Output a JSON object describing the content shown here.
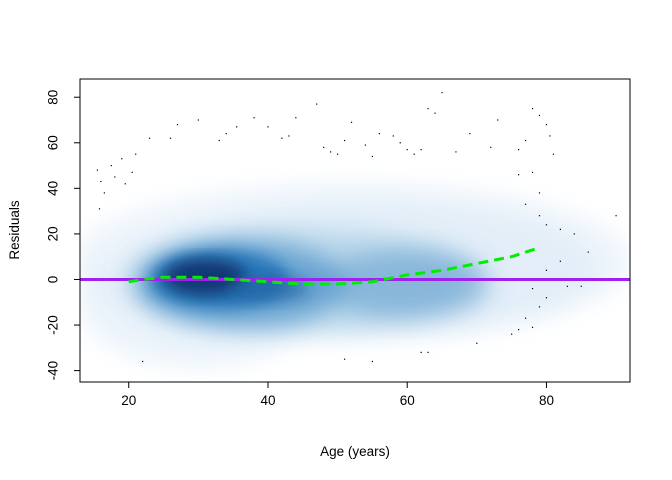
{
  "chart_data": {
    "type": "smoothscatter",
    "xlabel": "Age (years)",
    "ylabel": "Residuals",
    "xlim": [
      13,
      92
    ],
    "ylim": [
      -45,
      88
    ],
    "x_ticks": [
      20,
      40,
      60,
      80
    ],
    "y_ticks": [
      -40,
      -20,
      0,
      20,
      40,
      60,
      80
    ],
    "grid": false,
    "colors": {
      "density_dark": "#08306b",
      "density_mid": "#4a8fc8",
      "density_light": "#deebf7",
      "reference_line": "#a020f0",
      "smooth_line": "#00ee00",
      "points": "#000000"
    },
    "reference_line": {
      "y": 0
    },
    "smooth_curve": {
      "x": [
        20,
        22,
        25,
        30,
        35,
        40,
        45,
        50,
        55,
        60,
        65,
        70,
        75,
        79
      ],
      "y": [
        -1,
        0,
        1,
        1,
        0,
        -1,
        -2,
        -2,
        -1,
        2,
        4,
        7,
        10,
        14
      ]
    },
    "outlier_points": [
      [
        15.5,
        48
      ],
      [
        16,
        43
      ],
      [
        16.5,
        38
      ],
      [
        15.8,
        31
      ],
      [
        17.5,
        50
      ],
      [
        18,
        45
      ],
      [
        19,
        53
      ],
      [
        20.5,
        47
      ],
      [
        19.5,
        42
      ],
      [
        21,
        55
      ],
      [
        23,
        62
      ],
      [
        26,
        62
      ],
      [
        27,
        68
      ],
      [
        30,
        70
      ],
      [
        33,
        61
      ],
      [
        34,
        64
      ],
      [
        35.5,
        67
      ],
      [
        38,
        71
      ],
      [
        40,
        67
      ],
      [
        42,
        62
      ],
      [
        43,
        63
      ],
      [
        44,
        71
      ],
      [
        47,
        77
      ],
      [
        48,
        58
      ],
      [
        49,
        56
      ],
      [
        50,
        55
      ],
      [
        51,
        61
      ],
      [
        52,
        69
      ],
      [
        54,
        59
      ],
      [
        55,
        54
      ],
      [
        56,
        64
      ],
      [
        58,
        63
      ],
      [
        59,
        60
      ],
      [
        60,
        57
      ],
      [
        61,
        55
      ],
      [
        62,
        57
      ],
      [
        63,
        75
      ],
      [
        64,
        73
      ],
      [
        65,
        82
      ],
      [
        67,
        56
      ],
      [
        69,
        64
      ],
      [
        72,
        58
      ],
      [
        73,
        70
      ],
      [
        76,
        57
      ],
      [
        77,
        61
      ],
      [
        78,
        75
      ],
      [
        79,
        72
      ],
      [
        80,
        68
      ],
      [
        80.5,
        63
      ],
      [
        81,
        55
      ],
      [
        76,
        46
      ],
      [
        78,
        47
      ],
      [
        79,
        38
      ],
      [
        77,
        33
      ],
      [
        79,
        28
      ],
      [
        80,
        24
      ],
      [
        82,
        22
      ],
      [
        84,
        20
      ],
      [
        90,
        28
      ],
      [
        86,
        12
      ],
      [
        82,
        8
      ],
      [
        80,
        4
      ],
      [
        78,
        -4
      ],
      [
        80,
        -8
      ],
      [
        79,
        -12
      ],
      [
        77,
        -17
      ],
      [
        76,
        -22
      ],
      [
        75,
        -24
      ],
      [
        78,
        -21
      ],
      [
        83,
        -3
      ],
      [
        85,
        -3
      ],
      [
        70,
        -28
      ],
      [
        62,
        -32
      ],
      [
        63,
        -32
      ],
      [
        55,
        -36
      ],
      [
        51,
        -35
      ],
      [
        22,
        -36
      ]
    ]
  }
}
